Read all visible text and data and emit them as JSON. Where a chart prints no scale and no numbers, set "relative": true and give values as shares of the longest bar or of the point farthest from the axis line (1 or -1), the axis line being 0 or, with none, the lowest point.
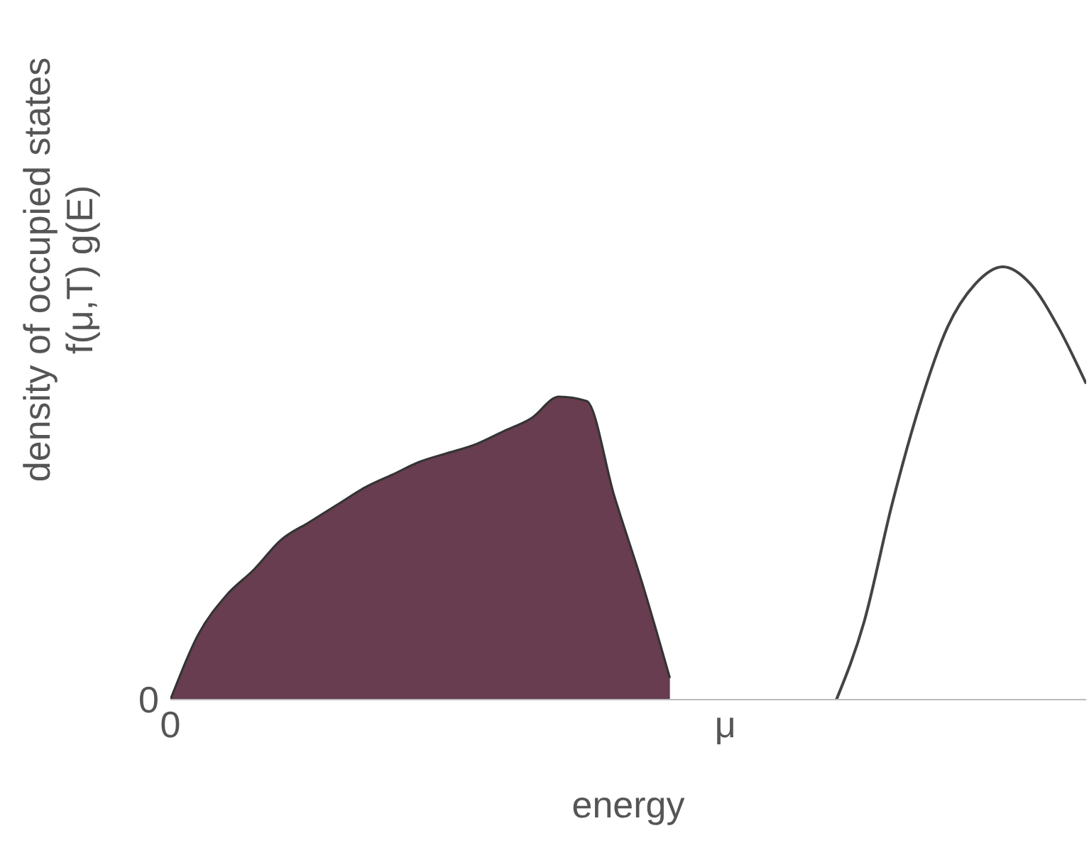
{
  "chart_data": {
    "type": "area",
    "relative": true,
    "xlabel": "energy",
    "ylabel": "density of occupied states\nf(μ,T) g(E)",
    "annotations": [
      "0"
    ],
    "categories": [
      "0",
      null,
      null,
      null,
      null,
      null,
      null,
      null,
      null,
      null,
      null,
      null,
      null,
      null,
      null,
      null,
      null,
      null,
      null,
      null,
      "μ",
      null,
      null,
      null,
      null,
      null,
      null,
      null,
      null,
      null,
      null,
      null,
      null,
      null
    ],
    "series": [
      {
        "color": "#673d4f",
        "values": [
          0,
          0.15,
          0.24,
          0.3,
          0.37,
          0.41,
          0.45,
          0.49,
          0.52,
          0.55,
          0.57,
          0.59,
          0.62,
          0.65,
          0.7,
          0.69,
          0.47,
          0.27,
          0.05,
          null,
          null,
          null,
          null,
          null,
          null,
          null,
          null,
          null,
          null,
          null,
          null,
          null,
          null,
          null
        ]
      },
      {
        "type": "line",
        "color": "#444444",
        "values": [
          null,
          null,
          null,
          null,
          null,
          null,
          null,
          null,
          null,
          null,
          null,
          null,
          null,
          null,
          null,
          null,
          null,
          null,
          null,
          null,
          null,
          null,
          null,
          null,
          0,
          0.18,
          0.45,
          0.68,
          0.86,
          0.96,
          1,
          0.96,
          0.86,
          0.73
        ]
      }
    ]
  }
}
